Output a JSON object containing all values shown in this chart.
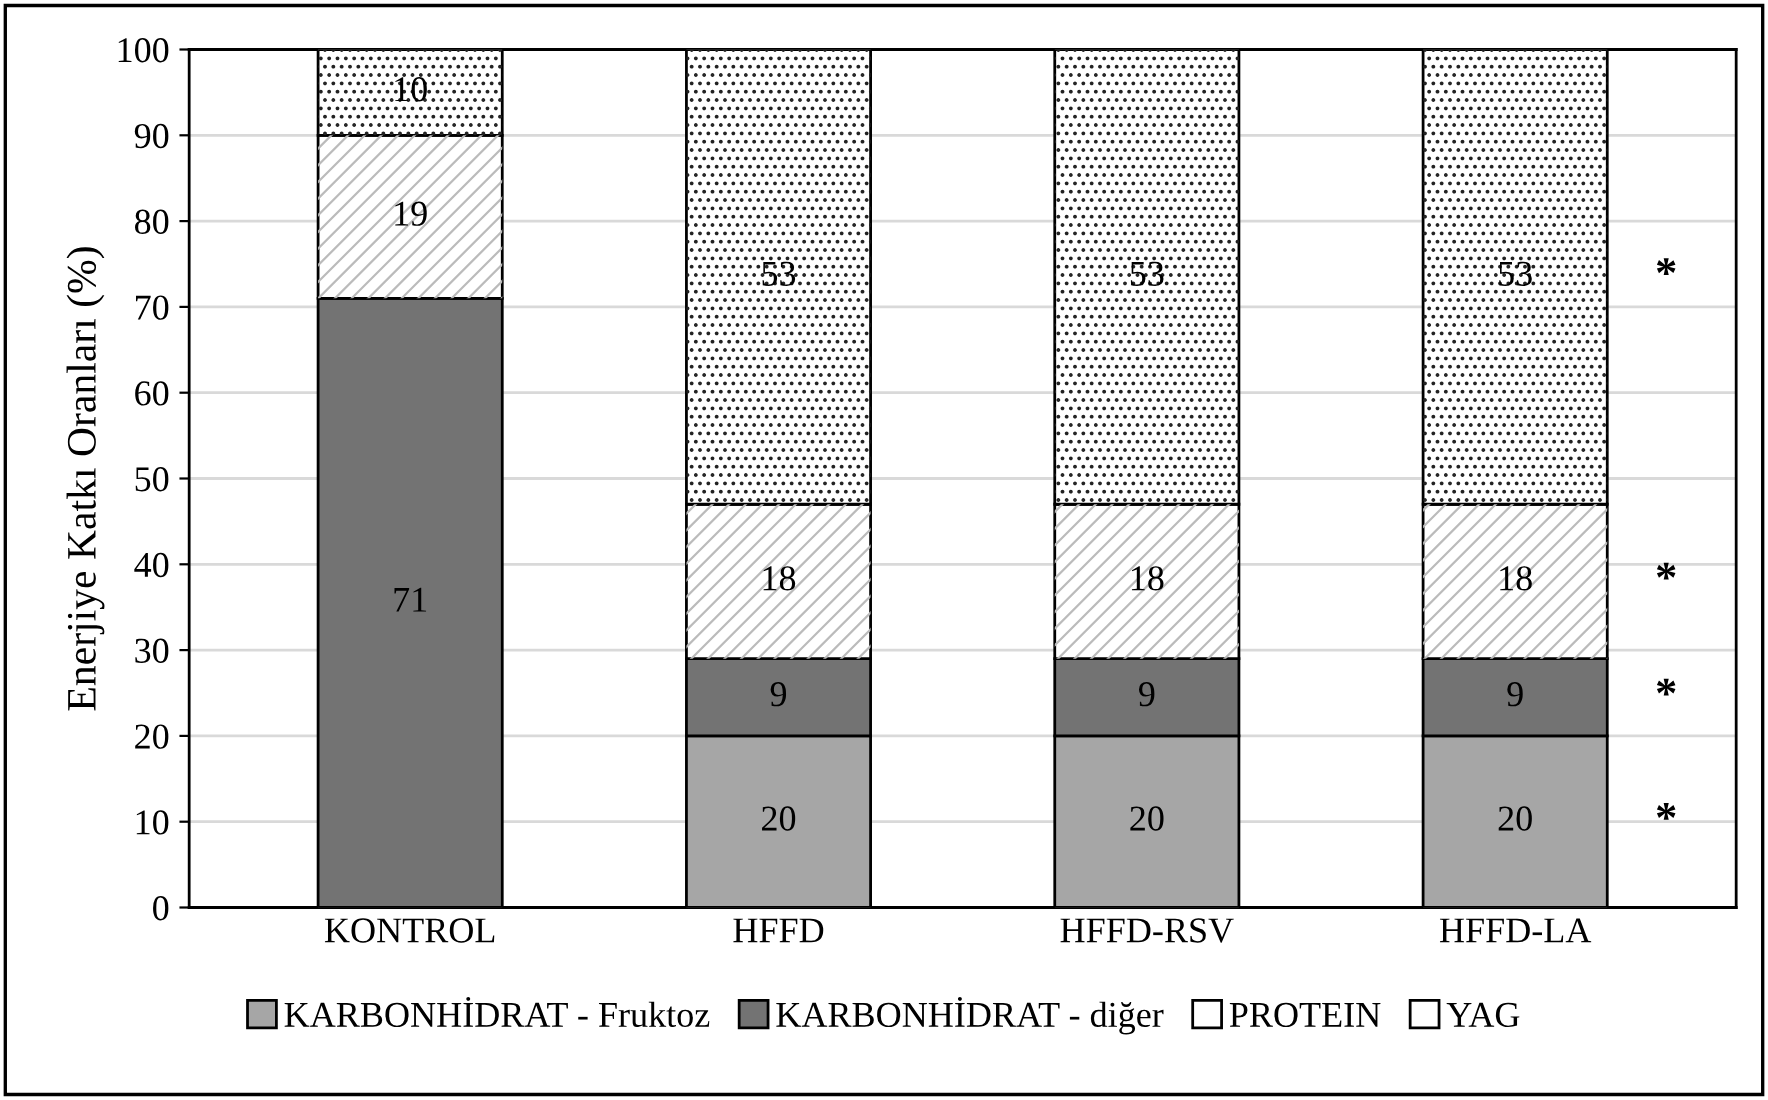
{
  "chart_data": {
    "type": "bar",
    "stacked": true,
    "ylabel": "Enerjiye Katkı Oranları (%)",
    "categories": [
      "KONTROL",
      "HFFD",
      "HFFD-RSV",
      "HFFD-LA"
    ],
    "series": [
      {
        "name": "KARBONHİDRAT - Fruktoz",
        "color": "#a6a6a6",
        "values": [
          0,
          20,
          20,
          20
        ],
        "value_labels": [
          null,
          "20",
          "20",
          "20"
        ]
      },
      {
        "name": "KARBONHİDRAT - diğer",
        "color": "#737373",
        "values": [
          71,
          9,
          9,
          9
        ],
        "value_labels": [
          "71",
          "9",
          "9",
          "9"
        ]
      },
      {
        "name": "PROTEIN",
        "color": "#ffffff",
        "values": [
          19,
          18,
          18,
          18
        ],
        "value_labels": [
          "19",
          "18",
          "18",
          "18"
        ]
      },
      {
        "name": "YAG",
        "color": "#ffffff",
        "values": [
          10,
          53,
          53,
          53
        ],
        "value_labels": [
          "10",
          "53",
          "53",
          "53"
        ]
      }
    ],
    "ylim": [
      0,
      100
    ],
    "yticks": [
      0,
      10,
      20,
      30,
      40,
      50,
      60,
      70,
      80,
      90,
      100
    ],
    "grid": "y",
    "legend": "bottom",
    "annotations": [
      "*",
      "*",
      "*",
      "*"
    ]
  }
}
